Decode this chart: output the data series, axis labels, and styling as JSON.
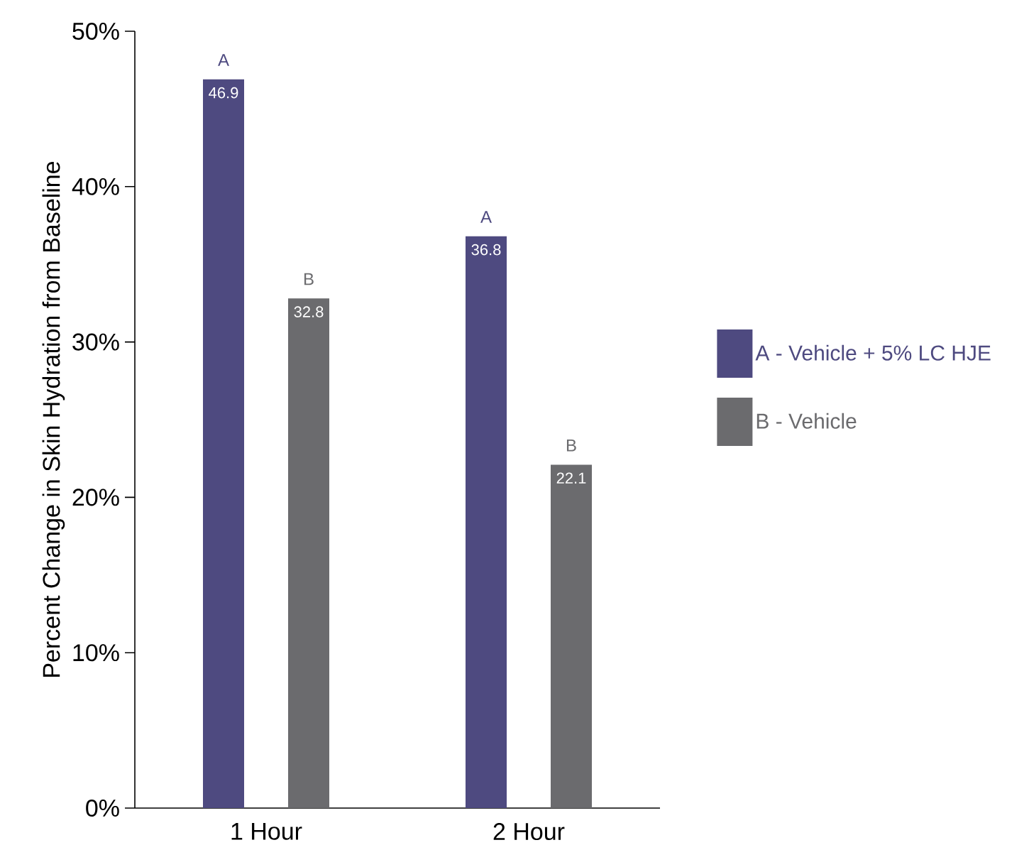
{
  "chart_data": {
    "type": "bar",
    "ylabel": "Percent Change in Skin Hydration from Baseline",
    "categories": [
      "1 Hour",
      "2 Hour"
    ],
    "series": [
      {
        "name": "A - Vehicle + 5% LC HJE",
        "color": "#4e4a80",
        "values": [
          46.9,
          36.8
        ]
      },
      {
        "name": "B - Vehicle",
        "color": "#6b6b6e",
        "values": [
          32.8,
          22.1
        ]
      }
    ],
    "annotations": [
      "A",
      "B",
      "A",
      "B"
    ],
    "ylim": [
      0,
      50
    ],
    "yticks": [
      {
        "value": 0,
        "label": "0%"
      },
      {
        "value": 10,
        "label": "10%"
      },
      {
        "value": 20,
        "label": "20%"
      },
      {
        "value": 30,
        "label": "30%"
      },
      {
        "value": 40,
        "label": "40%"
      },
      {
        "value": 50,
        "label": "50%"
      }
    ],
    "data_labels": true,
    "grid": false,
    "legend": "right"
  }
}
